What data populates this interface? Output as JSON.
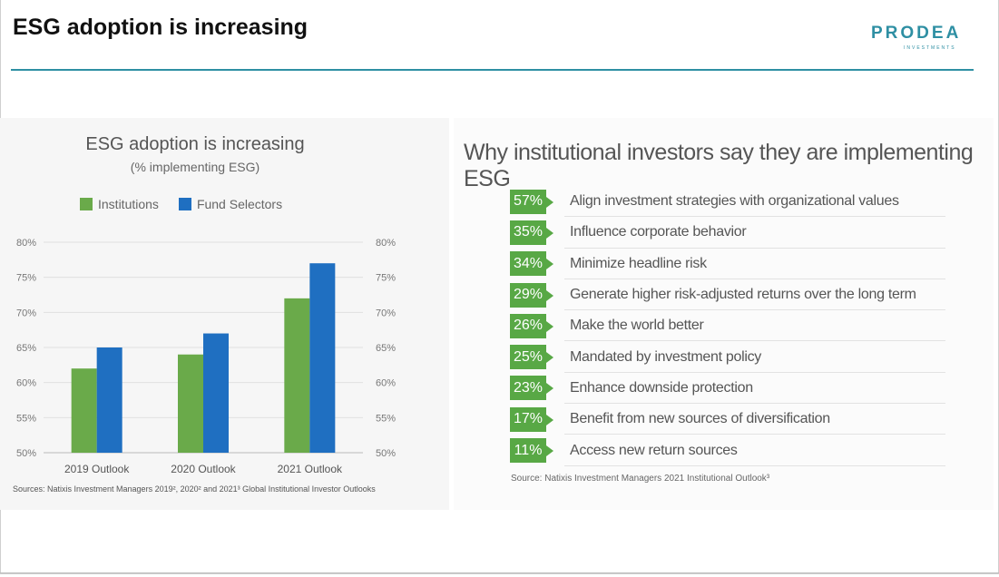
{
  "header": {
    "title": "ESG adoption is increasing",
    "logo_text": "PRODEA",
    "logo_sub": "INVESTMENTS",
    "accent_color": "#2e8fa3"
  },
  "left_panel": {
    "chart_title": "ESG adoption is increasing",
    "chart_subtitle": "(% implementing  ESG)",
    "source": "Sources: Natixis Investment Managers 2019², 2020² and 2021³ Global Institutional Investor Outlooks"
  },
  "chart_data": {
    "type": "bar",
    "title": "ESG adoption is increasing",
    "subtitle": "(% implementing  ESG)",
    "categories": [
      "2019 Outlook",
      "2020 Outlook",
      "2021 Outlook"
    ],
    "series": [
      {
        "name": "Institutions",
        "values": [
          62,
          64,
          72
        ],
        "color": "#6aaa4a"
      },
      {
        "name": "Fund Selectors",
        "values": [
          65,
          67,
          77
        ],
        "color": "#1f6fc1"
      }
    ],
    "ylim": [
      50,
      80
    ],
    "yticks": [
      "50%",
      "55%",
      "60%",
      "65%",
      "70%",
      "75%",
      "80%"
    ],
    "ytick_values": [
      50,
      55,
      60,
      65,
      70,
      75,
      80
    ],
    "grid": true,
    "legend_position": "top-left"
  },
  "right_panel": {
    "title": "Why institutional investors say they are implementing ESG",
    "box_color": "#58a845",
    "reasons": [
      {
        "pct": "57%",
        "text": "Align investment strategies with organizational values"
      },
      {
        "pct": "35%",
        "text": "Influence corporate behavior"
      },
      {
        "pct": "34%",
        "text": "Minimize headline risk"
      },
      {
        "pct": "29%",
        "text": "Generate higher risk-adjusted returns over the long term"
      },
      {
        "pct": "26%",
        "text": "Make the world better"
      },
      {
        "pct": "25%",
        "text": "Mandated by investment policy"
      },
      {
        "pct": "23%",
        "text": "Enhance downside protection"
      },
      {
        "pct": "17%",
        "text": "Benefit from new sources of diversification"
      },
      {
        "pct": "11%",
        "text": "Access new return sources"
      }
    ],
    "source": "Source: Natixis Investment Managers 2021 Institutional Outlook³"
  }
}
